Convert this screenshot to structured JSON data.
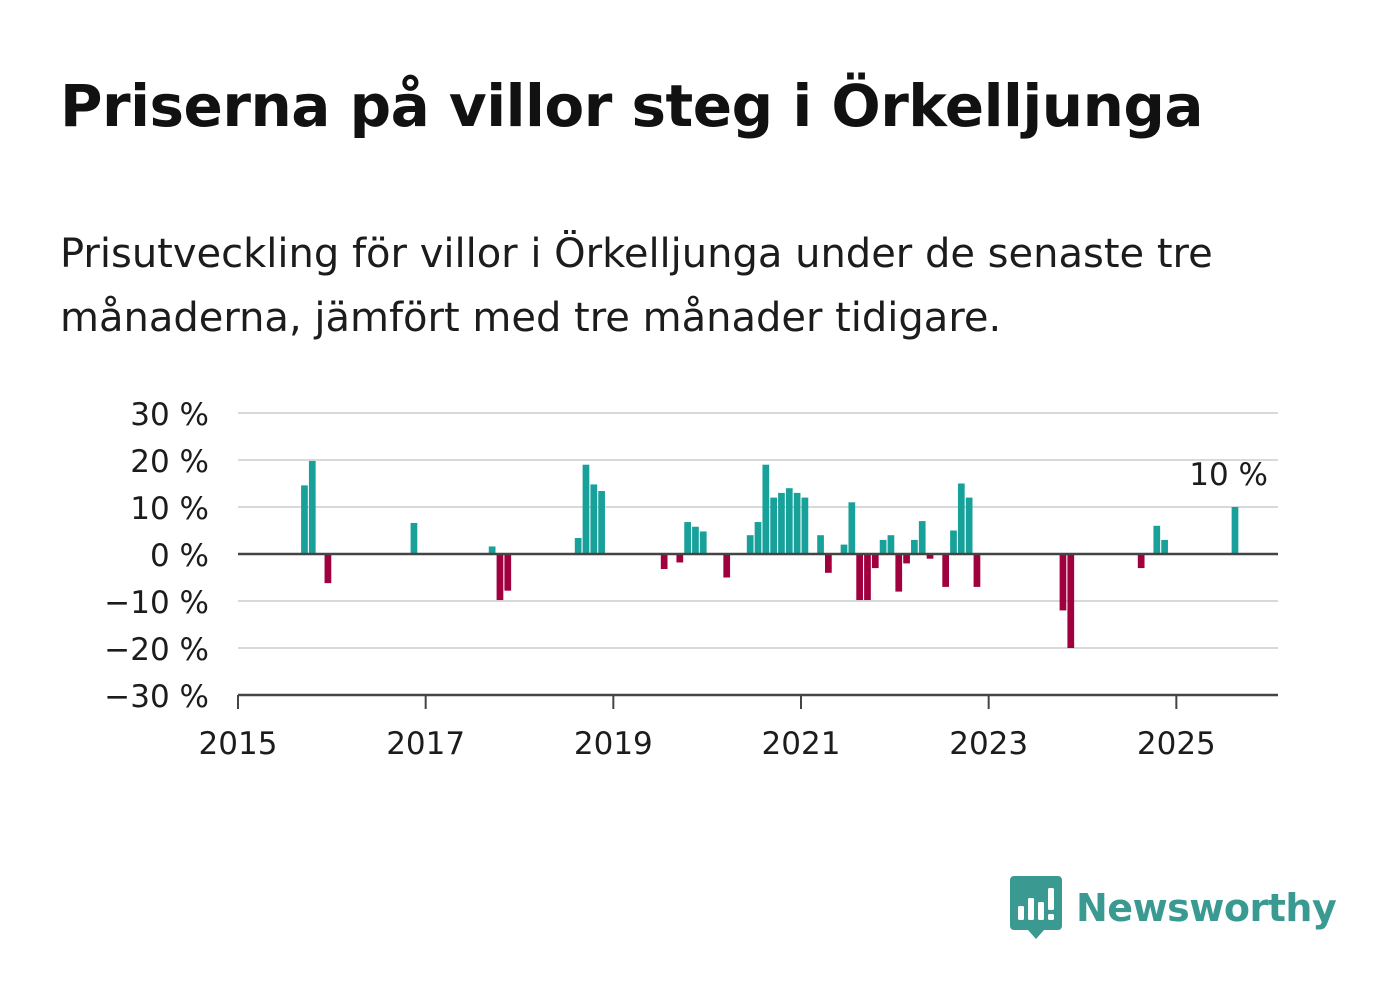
{
  "title": "Priserna på villor steg i Örkelljunga",
  "subtitle": "Prisutveckling för villor i Örkelljunga under de senaste tre månaderna, jämfört med tre månader tidigare.",
  "brand": {
    "name": "Newsworthy"
  },
  "colors": {
    "positive": "#18a19a",
    "negative": "#a0003d",
    "brand": "#3a9a92",
    "gridline": "#d9d9d9",
    "zero_line": "#444444"
  },
  "chart_data": {
    "type": "bar",
    "title": "Priserna på villor steg i Örkelljunga",
    "xlabel": "",
    "ylabel": "",
    "xlim": [
      "2015-01",
      "2026-02"
    ],
    "ylim": [
      -30,
      30
    ],
    "y_ticks": [
      30,
      20,
      10,
      0,
      -10,
      -20,
      -30
    ],
    "y_tick_labels": [
      "30 %",
      "20 %",
      "10 %",
      "0 %",
      "−10 %",
      "−20 %",
      "−30 %"
    ],
    "x_ticks": [
      "2015",
      "2017",
      "2019",
      "2021",
      "2023",
      "2025"
    ],
    "grid": true,
    "annotation": {
      "date": "2025-08",
      "value": 10,
      "text": "10 %"
    },
    "series": [
      {
        "values": [
          {
            "date": "2015-09",
            "value": 14.6
          },
          {
            "date": "2015-10",
            "value": 19.8
          },
          {
            "date": "2015-12",
            "value": -6.2
          },
          {
            "date": "2016-11",
            "value": 6.6
          },
          {
            "date": "2017-09",
            "value": 1.6
          },
          {
            "date": "2017-10",
            "value": -9.8
          },
          {
            "date": "2017-11",
            "value": -7.8
          },
          {
            "date": "2018-08",
            "value": 3.4
          },
          {
            "date": "2018-09",
            "value": 19.0
          },
          {
            "date": "2018-10",
            "value": 14.8
          },
          {
            "date": "2018-11",
            "value": 13.4
          },
          {
            "date": "2019-07",
            "value": -3.2
          },
          {
            "date": "2019-09",
            "value": -1.8
          },
          {
            "date": "2019-10",
            "value": 6.8
          },
          {
            "date": "2019-11",
            "value": 5.8
          },
          {
            "date": "2019-12",
            "value": 4.8
          },
          {
            "date": "2020-03",
            "value": -5.0
          },
          {
            "date": "2020-06",
            "value": 4.0
          },
          {
            "date": "2020-07",
            "value": 6.8
          },
          {
            "date": "2020-08",
            "value": 19.0
          },
          {
            "date": "2020-09",
            "value": 12.0
          },
          {
            "date": "2020-10",
            "value": 13.0
          },
          {
            "date": "2020-11",
            "value": 14.0
          },
          {
            "date": "2020-12",
            "value": 13.0
          },
          {
            "date": "2021-01",
            "value": 12.0
          },
          {
            "date": "2021-03",
            "value": 4.0
          },
          {
            "date": "2021-04",
            "value": -4.0
          },
          {
            "date": "2021-06",
            "value": 2.0
          },
          {
            "date": "2021-07",
            "value": 11.0
          },
          {
            "date": "2021-08",
            "value": -9.8
          },
          {
            "date": "2021-09",
            "value": -9.8
          },
          {
            "date": "2021-10",
            "value": -3.0
          },
          {
            "date": "2021-11",
            "value": 3.0
          },
          {
            "date": "2021-12",
            "value": 4.0
          },
          {
            "date": "2022-01",
            "value": -8.0
          },
          {
            "date": "2022-02",
            "value": -2.0
          },
          {
            "date": "2022-03",
            "value": 3.0
          },
          {
            "date": "2022-04",
            "value": 7.0
          },
          {
            "date": "2022-05",
            "value": -1.0
          },
          {
            "date": "2022-07",
            "value": -7.0
          },
          {
            "date": "2022-08",
            "value": 5.0
          },
          {
            "date": "2022-09",
            "value": 15.0
          },
          {
            "date": "2022-10",
            "value": 12.0
          },
          {
            "date": "2022-11",
            "value": -7.0
          },
          {
            "date": "2023-10",
            "value": -12.0
          },
          {
            "date": "2023-11",
            "value": -20.0
          },
          {
            "date": "2024-08",
            "value": -3.0
          },
          {
            "date": "2024-10",
            "value": 6.0
          },
          {
            "date": "2024-11",
            "value": 3.0
          },
          {
            "date": "2025-08",
            "value": 10.0
          }
        ]
      }
    ]
  }
}
